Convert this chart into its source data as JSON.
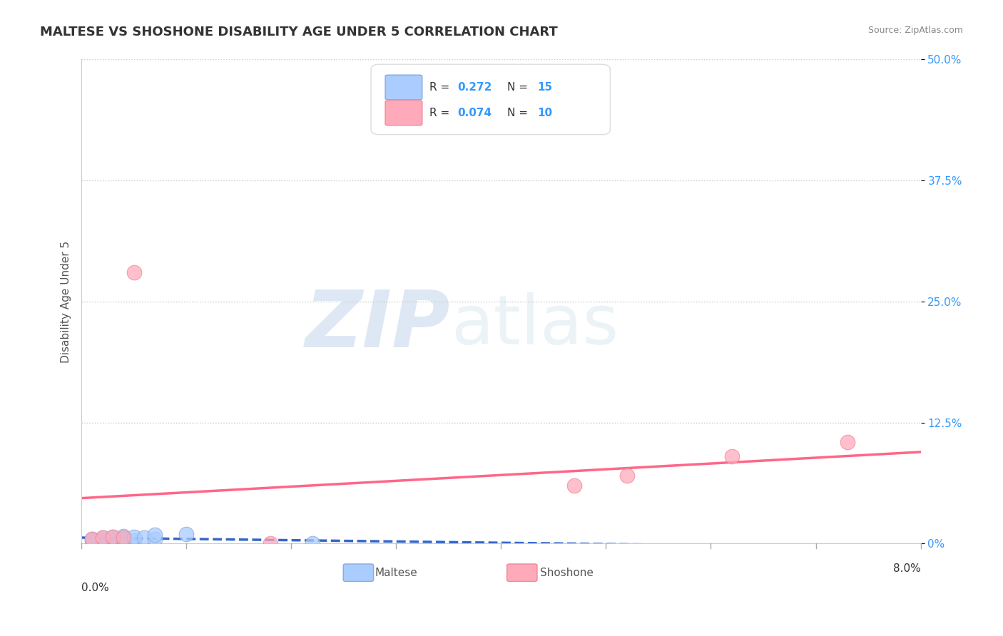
{
  "title": "MALTESE VS SHOSHONE DISABILITY AGE UNDER 5 CORRELATION CHART",
  "source": "Source: ZipAtlas.com",
  "ylabel": "Disability Age Under 5",
  "xlim": [
    0.0,
    0.08
  ],
  "ylim": [
    0.0,
    0.5
  ],
  "ytick_labels": [
    "0%",
    "12.5%",
    "25.0%",
    "37.5%",
    "50.0%"
  ],
  "ytick_values": [
    0.0,
    0.125,
    0.25,
    0.375,
    0.5
  ],
  "background_color": "#ffffff",
  "maltese": {
    "label": "Maltese",
    "R": "0.272",
    "N": "15",
    "color": "#aaccff",
    "edge_color": "#88aadd",
    "line_color": "#3366cc",
    "line_style": "--",
    "x": [
      0.001,
      0.001,
      0.002,
      0.002,
      0.003,
      0.003,
      0.004,
      0.004,
      0.005,
      0.005,
      0.006,
      0.007,
      0.007,
      0.01,
      0.022
    ],
    "y": [
      0.003,
      0.005,
      0.003,
      0.006,
      0.005,
      0.007,
      0.005,
      0.008,
      0.003,
      0.007,
      0.006,
      0.005,
      0.009,
      0.01,
      0.0
    ]
  },
  "shoshone": {
    "label": "Shoshone",
    "R": "0.074",
    "N": "10",
    "color": "#ffaabb",
    "edge_color": "#ee8899",
    "line_color": "#ff6688",
    "line_style": "-",
    "x": [
      0.001,
      0.002,
      0.003,
      0.004,
      0.005,
      0.018,
      0.047,
      0.052,
      0.062,
      0.073
    ],
    "y": [
      0.005,
      0.006,
      0.007,
      0.006,
      0.28,
      0.0,
      0.06,
      0.07,
      0.09,
      0.105
    ]
  },
  "legend_R_color": "#3399ff",
  "title_color": "#333333",
  "title_fontsize": 13,
  "axis_label_color": "#3399ff",
  "grid_color": "#cccccc",
  "grid_style": ":"
}
